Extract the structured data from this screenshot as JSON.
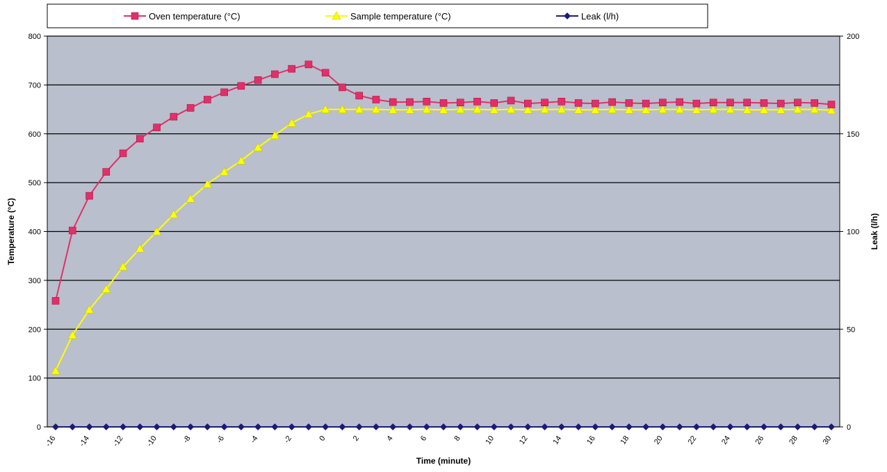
{
  "chart_data": {
    "type": "line",
    "title": "",
    "xlabel": "Time (minute)",
    "ylabel": "Temperature (°C)",
    "y2label": "Leak (l/h)",
    "xlim": [
      -16,
      30
    ],
    "ylim": [
      0,
      800
    ],
    "y2lim": [
      0,
      200
    ],
    "x_ticks": [
      -16,
      -14,
      -12,
      -10,
      -8,
      -6,
      -4,
      -2,
      0,
      2,
      4,
      6,
      8,
      10,
      12,
      14,
      16,
      18,
      20,
      22,
      24,
      26,
      28,
      30
    ],
    "y_ticks": [
      0,
      100,
      200,
      300,
      400,
      500,
      600,
      700,
      800
    ],
    "y2_ticks": [
      0,
      50,
      100,
      150,
      200
    ],
    "grid": "horizontal",
    "legend_position": "top",
    "x": [
      -16,
      -15,
      -14,
      -13,
      -12,
      -11,
      -10,
      -9,
      -8,
      -7,
      -6,
      -5,
      -4,
      -3,
      -2,
      -1,
      0,
      1,
      2,
      3,
      4,
      5,
      6,
      7,
      8,
      9,
      10,
      11,
      12,
      13,
      14,
      15,
      16,
      17,
      18,
      19,
      20,
      21,
      22,
      23,
      24,
      25,
      26,
      27,
      28,
      29,
      30
    ],
    "series": [
      {
        "name": "Oven temperature (°C)",
        "axis": "left",
        "color": "#e0306a",
        "marker": "square",
        "values": [
          258,
          402,
          473,
          522,
          560,
          590,
          613,
          635,
          653,
          670,
          685,
          698,
          710,
          722,
          733,
          742,
          725,
          695,
          678,
          670,
          665,
          665,
          666,
          663,
          664,
          666,
          663,
          668,
          662,
          664,
          666,
          663,
          662,
          665,
          663,
          662,
          664,
          665,
          662,
          664,
          664,
          664,
          663,
          662,
          664,
          663,
          660
        ]
      },
      {
        "name": "Sample temperature (°C)",
        "axis": "left",
        "color": "#ffff00",
        "marker": "triangle",
        "values": [
          115,
          188,
          240,
          282,
          328,
          365,
          400,
          435,
          467,
          497,
          522,
          545,
          572,
          597,
          622,
          640,
          650,
          650,
          650,
          650,
          649,
          649,
          650,
          649,
          650,
          650,
          649,
          650,
          649,
          650,
          650,
          649,
          649,
          650,
          649,
          649,
          650,
          650,
          649,
          650,
          650,
          649,
          649,
          649,
          650,
          650,
          648
        ]
      },
      {
        "name": "Leak (l/h)",
        "axis": "right",
        "color": "#1a1a7a",
        "marker": "diamond",
        "values": [
          0,
          0,
          0,
          0,
          0,
          0,
          0,
          0,
          0,
          0,
          0,
          0,
          0,
          0,
          0,
          0,
          0,
          0,
          0,
          0,
          0,
          0,
          0,
          0,
          0,
          0,
          0,
          0,
          0,
          0,
          0,
          0,
          0,
          0,
          0,
          0,
          0,
          0,
          0,
          0,
          0,
          0,
          0,
          0,
          0,
          0,
          0
        ]
      }
    ]
  },
  "colors": {
    "plot_background": "#b9bfcc",
    "grid": "#000000",
    "axis": "#000000"
  }
}
